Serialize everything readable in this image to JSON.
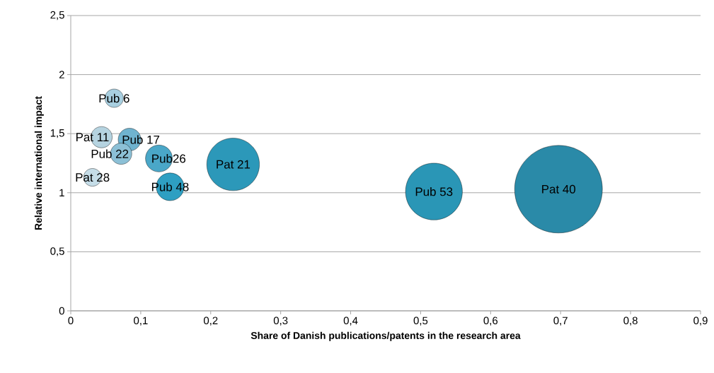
{
  "chart_data": {
    "type": "bubble",
    "xlabel": "Share of Danish publications/patents in the research area",
    "ylabel": "Relative international impact",
    "x": [
      0.062,
      0.044,
      0.084,
      0.072,
      0.126,
      0.031,
      0.142,
      0.232,
      0.519,
      0.697
    ],
    "values": [
      1.8,
      1.47,
      1.45,
      1.33,
      1.29,
      1.13,
      1.05,
      1.24,
      1.01,
      1.03
    ],
    "sizes": [
      0.044,
      0.059,
      0.067,
      0.059,
      0.094,
      0.041,
      0.1,
      0.36,
      0.42,
      1
    ],
    "colors": [
      "#a8cfe0",
      "#b5d3e0",
      "#6fb3cf",
      "#8cc0d6",
      "#4aa7c8",
      "#c5dde8",
      "#2e9fc2",
      "#2c98b9",
      "#2a96b6",
      "#2a8aa8"
    ],
    "annotations": [
      {
        "text": "Pub 6",
        "x": 0.062,
        "y": 1.8
      },
      {
        "text": "Pat 11",
        "x": 0.044,
        "y": 1.47
      },
      {
        "text": "Pub 17",
        "x": 0.084,
        "y": 1.45
      },
      {
        "text": "Pub 22",
        "x": 0.072,
        "y": 1.33
      },
      {
        "text": "Pub26",
        "x": 0.126,
        "y": 1.29
      },
      {
        "text": "Pat 28",
        "x": 0.031,
        "y": 1.13
      },
      {
        "text": "Pub 48",
        "x": 0.142,
        "y": 1.05
      },
      {
        "text": "Pat 21",
        "x": 0.232,
        "y": 1.24
      },
      {
        "text": "Pub 53",
        "x": 0.519,
        "y": 1.01
      },
      {
        "text": "Pat 40",
        "x": 0.697,
        "y": 1.03
      }
    ],
    "xlim": [
      0,
      0.9
    ],
    "ylim": [
      0,
      2.5
    ],
    "xticks": [
      0,
      {
        "value": 0.1,
        "label": "0,1"
      },
      {
        "value": 0.2,
        "label": "0,2"
      },
      {
        "value": 0.3,
        "label": "0,3"
      },
      {
        "value": 0.4,
        "label": "0,4"
      },
      {
        "value": 0.5,
        "label": "0,5"
      },
      {
        "value": 0.6,
        "label": "0,6"
      },
      {
        "value": 0.7,
        "label": "0,7"
      },
      {
        "value": 0.8,
        "label": "0,8"
      },
      {
        "value": 0.9,
        "label": "0,9"
      }
    ],
    "yticks": [
      0,
      {
        "value": 0.5,
        "label": "0,5"
      },
      1,
      {
        "value": 1.5,
        "label": "1,5"
      },
      2,
      {
        "value": 2.5,
        "label": "2,5"
      }
    ],
    "grid": "y"
  }
}
